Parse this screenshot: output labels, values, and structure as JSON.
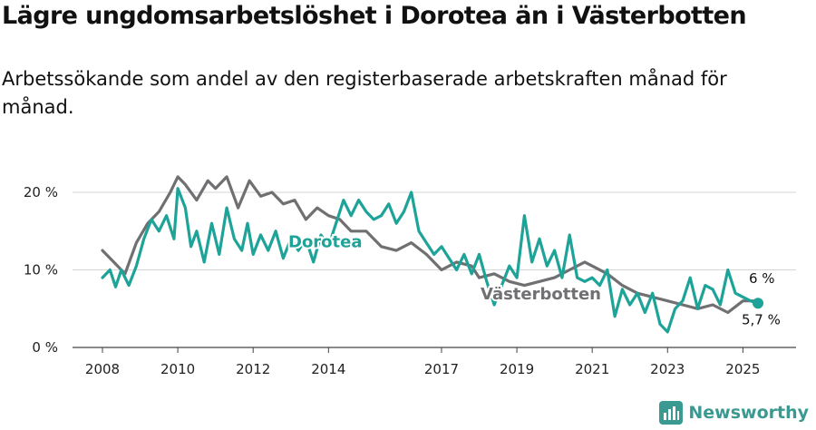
{
  "title": "Lägre ungdomsarbetslöshet i Dorotea än i Västerbotten",
  "subtitle": "Arbetssökande som andel av den registerbaserade arbetskraften månad för månad.",
  "brand": {
    "name": "Newsworthy",
    "logo_icon": "bar-chart-logo-icon",
    "color": "#3a9990"
  },
  "chart_data": {
    "type": "line",
    "y_ticks": [
      "0 %",
      "10 %",
      "20 %"
    ],
    "y_tick_values": [
      0,
      10,
      20
    ],
    "ylim": [
      0,
      20
    ],
    "x_ticks": [
      "2008",
      "2010",
      "2012",
      "2014",
      "2017",
      "2019",
      "2021",
      "2023",
      "2025"
    ],
    "x_tick_values": [
      2008,
      2010,
      2012,
      2014,
      2017,
      2019,
      2021,
      2023,
      2025
    ],
    "xlim": [
      2008,
      2025.4
    ],
    "grid": "horizontal",
    "series": [
      {
        "name": "Västerbotten",
        "color": "#707073",
        "end_label": "6 %",
        "x": [
          2008.0,
          2008.3,
          2008.6,
          2008.9,
          2009.2,
          2009.5,
          2009.8,
          2010.0,
          2010.2,
          2010.5,
          2010.8,
          2011.0,
          2011.3,
          2011.6,
          2011.9,
          2012.2,
          2012.5,
          2012.8,
          2013.1,
          2013.4,
          2013.7,
          2014.0,
          2014.3,
          2014.6,
          2015.0,
          2015.4,
          2015.8,
          2016.2,
          2016.6,
          2017.0,
          2017.4,
          2017.8,
          2018.0,
          2018.4,
          2018.8,
          2019.2,
          2019.6,
          2020.0,
          2020.4,
          2020.8,
          2021.0,
          2021.4,
          2021.8,
          2022.2,
          2022.6,
          2023.0,
          2023.4,
          2023.8,
          2024.2,
          2024.6,
          2025.0,
          2025.4
        ],
        "values": [
          12.5,
          11.0,
          9.5,
          13.5,
          16.0,
          17.5,
          20.0,
          22.0,
          21.0,
          19.0,
          21.5,
          20.5,
          22.0,
          18.0,
          21.5,
          19.5,
          20.0,
          18.5,
          19.0,
          16.5,
          18.0,
          17.0,
          16.5,
          15.0,
          15.0,
          13.0,
          12.5,
          13.5,
          12.0,
          10.0,
          11.0,
          10.5,
          9.0,
          9.5,
          8.5,
          8.0,
          8.5,
          9.0,
          10.0,
          11.0,
          10.5,
          9.5,
          8.0,
          7.0,
          6.5,
          6.0,
          5.5,
          5.0,
          5.5,
          4.5,
          6.0,
          6.0
        ]
      },
      {
        "name": "Dorotea",
        "color": "#1ea398",
        "end_label": "5,7 %",
        "x": [
          2008.0,
          2008.2,
          2008.35,
          2008.5,
          2008.7,
          2008.9,
          2009.1,
          2009.3,
          2009.5,
          2009.7,
          2009.9,
          2010.0,
          2010.2,
          2010.35,
          2010.5,
          2010.7,
          2010.9,
          2011.1,
          2011.3,
          2011.5,
          2011.7,
          2011.85,
          2012.0,
          2012.2,
          2012.4,
          2012.6,
          2012.8,
          2013.0,
          2013.2,
          2013.4,
          2013.6,
          2013.8,
          2014.0,
          2014.2,
          2014.4,
          2014.6,
          2014.8,
          2015.0,
          2015.2,
          2015.4,
          2015.6,
          2015.8,
          2016.0,
          2016.2,
          2016.4,
          2016.6,
          2016.8,
          2017.0,
          2017.2,
          2017.4,
          2017.6,
          2017.8,
          2018.0,
          2018.2,
          2018.4,
          2018.6,
          2018.8,
          2019.0,
          2019.2,
          2019.4,
          2019.6,
          2019.8,
          2020.0,
          2020.2,
          2020.4,
          2020.6,
          2020.8,
          2021.0,
          2021.2,
          2021.4,
          2021.6,
          2021.8,
          2022.0,
          2022.2,
          2022.4,
          2022.6,
          2022.8,
          2023.0,
          2023.2,
          2023.4,
          2023.6,
          2023.8,
          2024.0,
          2024.2,
          2024.4,
          2024.6,
          2024.8,
          2025.0,
          2025.2,
          2025.4
        ],
        "values": [
          9.0,
          10.0,
          7.8,
          10.0,
          8.0,
          10.5,
          14.0,
          16.5,
          15.0,
          17.0,
          14.0,
          20.5,
          18.0,
          13.0,
          15.0,
          11.0,
          16.0,
          12.0,
          18.0,
          14.0,
          12.5,
          16.0,
          12.0,
          14.5,
          12.5,
          15.0,
          11.5,
          14.0,
          12.5,
          14.0,
          11.0,
          14.5,
          13.0,
          16.0,
          19.0,
          17.0,
          19.0,
          17.5,
          16.5,
          17.0,
          18.5,
          16.0,
          17.5,
          20.0,
          15.0,
          13.5,
          12.0,
          13.0,
          11.5,
          10.0,
          12.0,
          9.5,
          12.0,
          8.5,
          5.5,
          8.0,
          10.5,
          9.0,
          17.0,
          11.0,
          14.0,
          10.5,
          12.5,
          9.0,
          14.5,
          9.0,
          8.5,
          9.0,
          8.0,
          10.0,
          4.0,
          7.5,
          5.5,
          7.0,
          4.5,
          7.0,
          3.0,
          2.0,
          5.0,
          6.0,
          9.0,
          5.0,
          8.0,
          7.5,
          5.5,
          10.0,
          7.0,
          6.5,
          6.0,
          5.7
        ]
      }
    ]
  }
}
